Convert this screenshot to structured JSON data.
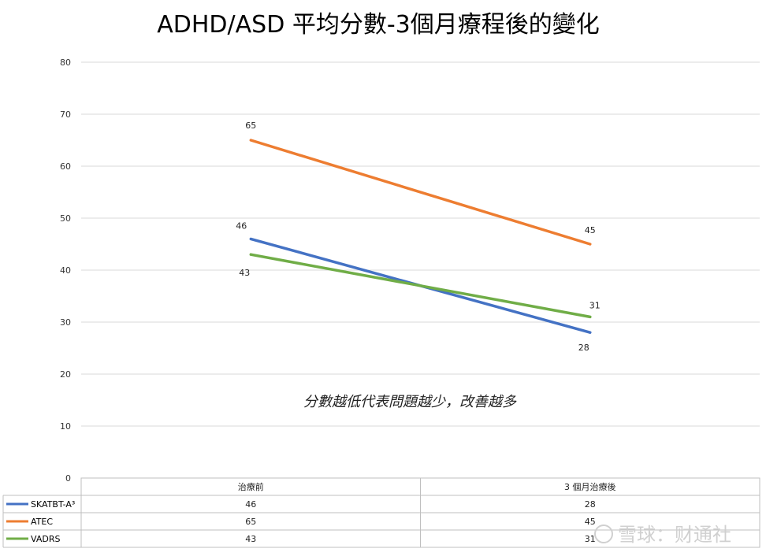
{
  "chart_data": {
    "type": "line",
    "title": "ADHD/ASD 平均分數-3個月療程後的變化",
    "annotation": "分數越低代表問題越少，改善越多",
    "categories": [
      "治療前",
      "3 個月治療後"
    ],
    "ylim": [
      0,
      80
    ],
    "yticks": [
      0,
      10,
      20,
      30,
      40,
      50,
      60,
      70,
      80
    ],
    "grid": true,
    "legend_placement": "data-table-left",
    "series": [
      {
        "name": "SKATBT-A³",
        "values": [
          46,
          28
        ],
        "labels": [
          "46",
          "28"
        ],
        "color": "#4472c4"
      },
      {
        "name": "ATEC",
        "values": [
          65,
          45
        ],
        "labels": [
          "65",
          "45"
        ],
        "color": "#ed7d31"
      },
      {
        "name": "VADRS",
        "values": [
          43,
          31
        ],
        "labels": [
          "43",
          "31"
        ],
        "color": "#70ad47"
      }
    ]
  },
  "watermark": "雪球：财通社"
}
